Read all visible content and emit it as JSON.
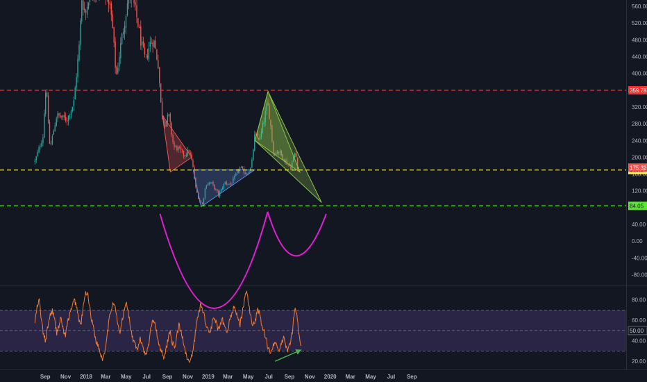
{
  "chart_data": [
    {
      "type": "candlestick",
      "title": "",
      "y_ticks": [
        -80,
        -40,
        0,
        40,
        80,
        120,
        160,
        200,
        240,
        280,
        320,
        400,
        440,
        480,
        520,
        560
      ],
      "ylim": [
        -104,
        575
      ],
      "grid": false,
      "colors": {
        "up": "#26a69a",
        "down": "#ef5350"
      },
      "anchors": [
        {
          "date": "2017-08-01",
          "price": 190
        },
        {
          "date": "2017-08-25",
          "price": 250
        },
        {
          "date": "2017-09-03",
          "price": 375
        },
        {
          "date": "2017-09-15",
          "price": 220
        },
        {
          "date": "2017-10-05",
          "price": 300
        },
        {
          "date": "2017-11-05",
          "price": 290
        },
        {
          "date": "2017-11-25",
          "price": 330
        },
        {
          "date": "2017-12-12",
          "price": 470
        },
        {
          "date": "2017-12-19",
          "price": 580
        },
        {
          "date": "2017-12-30",
          "price": 540
        },
        {
          "date": "2018-01-10",
          "price": 590
        },
        {
          "date": "2018-01-20",
          "price": 610
        },
        {
          "date": "2018-02-06",
          "price": 580
        },
        {
          "date": "2018-02-20",
          "price": 600
        },
        {
          "date": "2018-03-05",
          "price": 600
        },
        {
          "date": "2018-03-20",
          "price": 520
        },
        {
          "date": "2018-04-01",
          "price": 390
        },
        {
          "date": "2018-04-15",
          "price": 470
        },
        {
          "date": "2018-05-05",
          "price": 570
        },
        {
          "date": "2018-05-15",
          "price": 590
        },
        {
          "date": "2018-05-25",
          "price": 560
        },
        {
          "date": "2018-06-05",
          "price": 520
        },
        {
          "date": "2018-06-15",
          "price": 470
        },
        {
          "date": "2018-06-28",
          "price": 430
        },
        {
          "date": "2018-07-10",
          "price": 470
        },
        {
          "date": "2018-07-22",
          "price": 480
        },
        {
          "date": "2018-08-05",
          "price": 420
        },
        {
          "date": "2018-08-14",
          "price": 310
        },
        {
          "date": "2018-08-25",
          "price": 280
        },
        {
          "date": "2018-09-05",
          "price": 300
        },
        {
          "date": "2018-09-20",
          "price": 225
        },
        {
          "date": "2018-10-05",
          "price": 220
        },
        {
          "date": "2018-10-20",
          "price": 205
        },
        {
          "date": "2018-11-05",
          "price": 215
        },
        {
          "date": "2018-11-15",
          "price": 185
        },
        {
          "date": "2018-11-25",
          "price": 125
        },
        {
          "date": "2018-12-05",
          "price": 98
        },
        {
          "date": "2018-12-15",
          "price": 88
        },
        {
          "date": "2018-12-25",
          "price": 135
        },
        {
          "date": "2019-01-10",
          "price": 140
        },
        {
          "date": "2019-02-01",
          "price": 110
        },
        {
          "date": "2019-02-20",
          "price": 140
        },
        {
          "date": "2019-03-10",
          "price": 135
        },
        {
          "date": "2019-04-05",
          "price": 175
        },
        {
          "date": "2019-04-25",
          "price": 160
        },
        {
          "date": "2019-05-10",
          "price": 175
        },
        {
          "date": "2019-05-20",
          "price": 250
        },
        {
          "date": "2019-06-05",
          "price": 245
        },
        {
          "date": "2019-06-20",
          "price": 300
        },
        {
          "date": "2019-06-27",
          "price": 330
        },
        {
          "date": "2019-07-05",
          "price": 290
        },
        {
          "date": "2019-07-15",
          "price": 210
        },
        {
          "date": "2019-08-01",
          "price": 215
        },
        {
          "date": "2019-08-20",
          "price": 190
        },
        {
          "date": "2019-09-05",
          "price": 175
        },
        {
          "date": "2019-09-19",
          "price": 215
        },
        {
          "date": "2019-09-26",
          "price": 170
        },
        {
          "date": "2019-10-01",
          "price": 175
        }
      ],
      "horizontal_lines": [
        {
          "price": 359.78,
          "label": "359.78",
          "color": "#ff2e2e",
          "style": "dashed"
        },
        {
          "price": 169.54,
          "label": "169.54",
          "color": "#ffee58",
          "style": "dashed"
        },
        {
          "price": 84.05,
          "label": "84.05",
          "color": "#5ce632",
          "style": "dashed"
        }
      ],
      "price_tag": {
        "price": 175.32,
        "label": "175.32",
        "color": "#ef5350"
      },
      "shapes": [
        {
          "kind": "triangle",
          "color": "#ef5350",
          "points": [
            {
              "date": "2018-08-17",
              "price": 300
            },
            {
              "date": "2018-11-13",
              "price": 200
            },
            {
              "date": "2018-09-10",
              "price": 165
            }
          ]
        },
        {
          "kind": "triangle",
          "color": "#5b8ad9",
          "points": [
            {
              "date": "2018-11-17",
              "price": 170
            },
            {
              "date": "2019-05-20",
              "price": 170
            },
            {
              "date": "2018-12-11",
              "price": 82
            }
          ]
        },
        {
          "kind": "triangle",
          "color": "#8bc34a",
          "points": [
            {
              "date": "2019-06-29",
              "price": 357
            },
            {
              "date": "2019-05-21",
              "price": 240
            },
            {
              "date": "2019-12-06",
              "price": 92
            }
          ]
        },
        {
          "kind": "triangle",
          "color": "#8bc34a",
          "points": [
            {
              "date": "2019-06-29",
              "price": 357
            },
            {
              "date": "2019-05-21",
              "price": 240
            },
            {
              "date": "2019-10-02",
              "price": 165
            }
          ]
        }
      ],
      "curves": [
        {
          "color": "#e020d0",
          "points": [
            {
              "date": "2018-08-10",
              "price": 65
            },
            {
              "date": "2019-01-20",
              "price": -160
            },
            {
              "date": "2019-06-28",
              "price": 70
            }
          ]
        },
        {
          "color": "#e020d0",
          "points": [
            {
              "date": "2019-06-28",
              "price": 70
            },
            {
              "date": "2019-09-20",
              "price": -35
            },
            {
              "date": "2019-12-20",
              "price": 65
            }
          ]
        }
      ]
    },
    {
      "type": "line",
      "title": "",
      "series": [
        {
          "values": [
            58,
            72,
            80,
            60,
            45,
            40,
            55,
            65,
            70,
            60,
            48,
            55,
            62,
            50,
            45,
            58,
            66,
            72,
            80,
            75,
            62,
            55,
            70,
            85,
            88,
            75,
            60,
            52,
            40,
            35,
            28,
            22,
            30,
            45,
            60,
            72,
            78,
            70,
            55,
            48,
            60,
            70,
            78,
            65,
            50,
            40,
            35,
            30,
            42,
            38,
            30,
            28,
            35,
            50,
            62,
            58,
            45,
            35,
            30,
            25,
            30,
            42,
            50,
            38,
            32,
            45,
            55,
            48,
            40,
            30,
            22,
            18,
            25,
            38,
            55,
            68,
            75,
            70,
            60,
            52,
            48,
            55,
            62,
            58,
            50,
            55,
            60,
            52,
            48,
            58,
            65,
            72,
            70,
            62,
            55,
            68,
            80,
            88,
            75,
            62,
            55,
            60,
            72,
            65,
            55,
            48,
            40,
            32,
            30,
            35,
            40,
            32,
            30,
            38,
            42,
            35,
            30,
            38,
            48,
            72,
            65,
            45,
            35
          ],
          "color": "#f57c2e"
        }
      ],
      "x_start": "2017-08-01",
      "x_end": "2019-10-06",
      "y_ticks": [
        20,
        40,
        60,
        80
      ],
      "ylim": [
        12,
        94
      ],
      "bands": [
        {
          "from": 30,
          "to": 70,
          "color": "#7e57c2"
        }
      ],
      "levels": [
        70,
        50,
        30
      ],
      "price_tag": {
        "value": 50,
        "label": "50.00"
      },
      "trendline": {
        "color": "#4caf50",
        "points": [
          {
            "date": "2019-07-20",
            "value": 20
          },
          {
            "date": "2019-10-05",
            "value": 31
          }
        ]
      }
    }
  ],
  "time_axis": [
    {
      "date": "2017-09-01",
      "label": "Sep"
    },
    {
      "date": "2017-11-01",
      "label": "Nov"
    },
    {
      "date": "2018-01-01",
      "label": "2018"
    },
    {
      "date": "2018-03-01",
      "label": "Mar"
    },
    {
      "date": "2018-05-01",
      "label": "May"
    },
    {
      "date": "2018-07-01",
      "label": "Jul"
    },
    {
      "date": "2018-09-01",
      "label": "Sep"
    },
    {
      "date": "2018-11-01",
      "label": "Nov"
    },
    {
      "date": "2019-01-01",
      "label": "2019"
    },
    {
      "date": "2019-03-01",
      "label": "Mar"
    },
    {
      "date": "2019-05-01",
      "label": "May"
    },
    {
      "date": "2019-07-01",
      "label": "Jul"
    },
    {
      "date": "2019-09-01",
      "label": "Sep"
    },
    {
      "date": "2019-11-01",
      "label": "Nov"
    },
    {
      "date": "2020-01-01",
      "label": "2020"
    },
    {
      "date": "2020-03-01",
      "label": "Mar"
    },
    {
      "date": "2020-05-01",
      "label": "May"
    },
    {
      "date": "2020-07-01",
      "label": "Jul"
    },
    {
      "date": "2020-09-01",
      "label": "Sep"
    }
  ]
}
